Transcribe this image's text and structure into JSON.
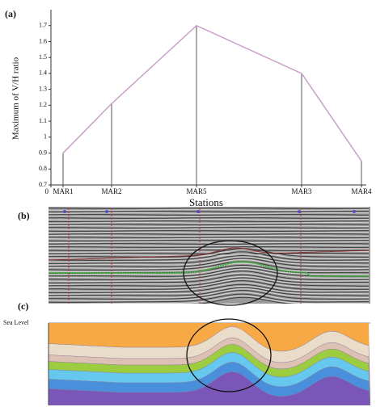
{
  "chart_data": {
    "type": "line",
    "panel_label": "(a)",
    "y_label": "Maximum of V/H ratio",
    "x_label": "Stations",
    "x": [
      15,
      75,
      180,
      310,
      384
    ],
    "values": [
      0.9,
      1.21,
      1.7,
      1.4,
      0.85
    ],
    "color": "#c8a0c8",
    "stem_color": "#555555",
    "xlim": [
      0,
      384
    ],
    "xticks": [
      0,
      {
        "value": 15,
        "label": "MAR1"
      },
      {
        "value": 75,
        "label": "MAR2"
      },
      {
        "value": 180,
        "label": "MAR5"
      },
      {
        "value": 310,
        "label": "MAR3"
      },
      {
        "value": 384,
        "label": "MAR4"
      }
    ],
    "ylim": [
      0.7,
      1.8
    ],
    "yticks": [
      0.7,
      0.8,
      0.9,
      1,
      1.1,
      1.2,
      1.3,
      1.4,
      1.5,
      1.6,
      1.7
    ],
    "grid": false
  },
  "panel_b": {
    "label": "(b)"
  },
  "panel_c": {
    "label": "(c)",
    "sea_level": "Sea Level"
  }
}
